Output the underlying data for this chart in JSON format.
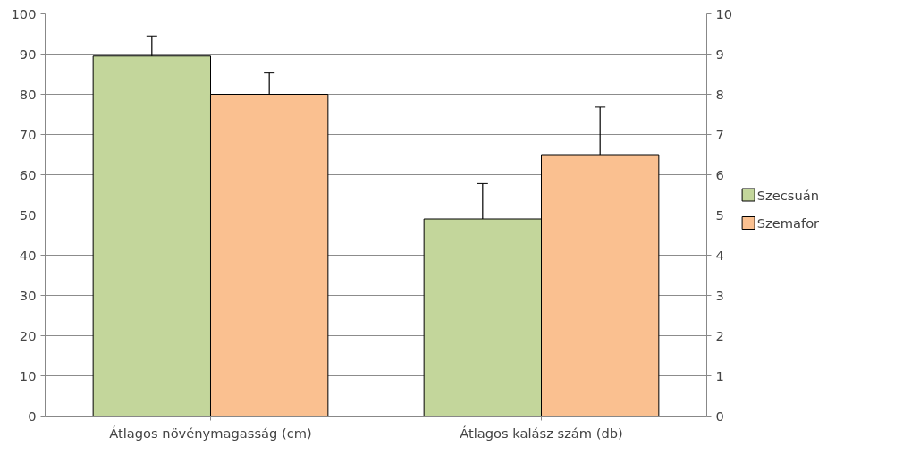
{
  "chart_data": {
    "type": "bar",
    "categories": [
      "Átlagos növénymagasság (cm)",
      "Átlagos kalász szám (db)"
    ],
    "series": [
      {
        "name": "Szecsuán",
        "color": "#c3d69b",
        "values": [
          89.5,
          null
        ],
        "errors": [
          5,
          null
        ]
      },
      {
        "name": "Szemafor",
        "color": "#fac090",
        "values": [
          80,
          null
        ],
        "errors": [
          5.3,
          null
        ]
      },
      {
        "color": "#c3d69b",
        "axis": "y2",
        "values": [
          null,
          4.9
        ],
        "errors": [
          null,
          0.88
        ]
      },
      {
        "color": "#fac090",
        "axis": "y2",
        "values": [
          null,
          6.5
        ],
        "errors": [
          null,
          1.18
        ]
      }
    ],
    "ylim": [
      0,
      100
    ],
    "yticks": [
      0,
      10,
      20,
      30,
      40,
      50,
      60,
      70,
      80,
      90,
      100
    ],
    "y2lim": [
      0,
      10
    ],
    "y2ticks": [
      0,
      1,
      2,
      3,
      4,
      5,
      6,
      7,
      8,
      9,
      10
    ],
    "grid": "y",
    "legend": "right"
  }
}
